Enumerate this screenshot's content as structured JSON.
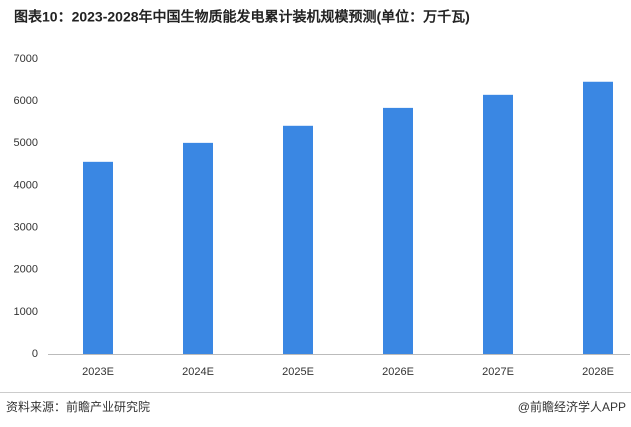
{
  "chart_data": {
    "type": "bar",
    "title": "图表10：2023-2028年中国生物质能发电累计装机规模预测(单位：万千瓦)",
    "categories": [
      "2023E",
      "2024E",
      "2025E",
      "2026E",
      "2027E",
      "2028E"
    ],
    "values": [
      4560,
      5010,
      5415,
      5840,
      6150,
      6460
    ],
    "color": "#3a87e3",
    "ylim": [
      0,
      7000
    ],
    "yticks": [
      0,
      1000,
      2000,
      3000,
      4000,
      5000,
      6000,
      7000
    ],
    "grid": false
  },
  "footer": {
    "source": "资料来源：前瞻产业研究院",
    "brand": "@前瞻经济学人APP"
  }
}
